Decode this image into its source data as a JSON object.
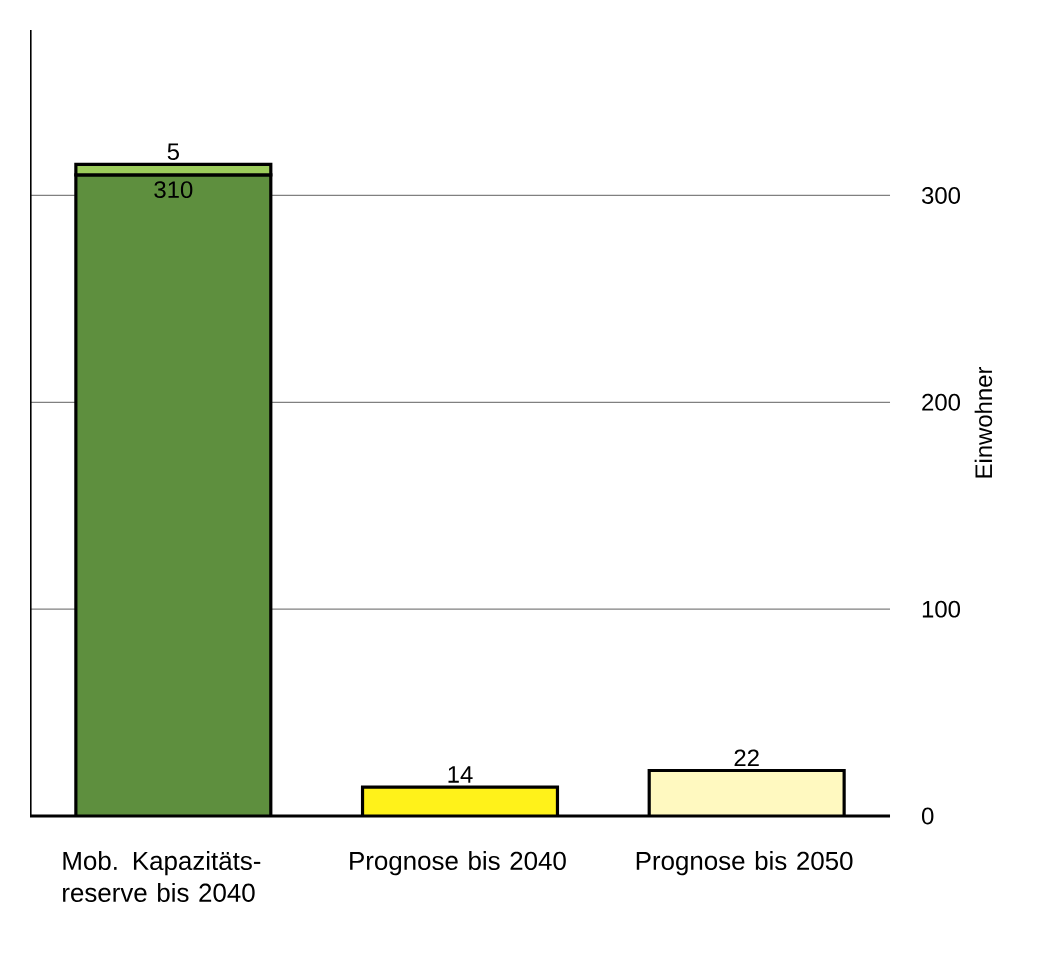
{
  "chart_data": {
    "type": "bar",
    "stacked": true,
    "ylabel": "Einwohner",
    "categories": [
      "Mob. Kapazitäts-reserve bis 2040",
      "Prognose bis 2040",
      "Prognose bis 2050"
    ],
    "series": [
      {
        "colors": [
          "#5e8f3e",
          "#fff21a",
          "#fff9c0"
        ],
        "values": [
          310,
          14,
          22
        ]
      },
      {
        "color": "#9ccc5c",
        "values": [
          5,
          null,
          null
        ]
      }
    ],
    "ylim": [
      0,
      380
    ],
    "yticks": [
      0,
      100,
      200,
      300
    ],
    "grid": "y",
    "data_labels": true
  }
}
